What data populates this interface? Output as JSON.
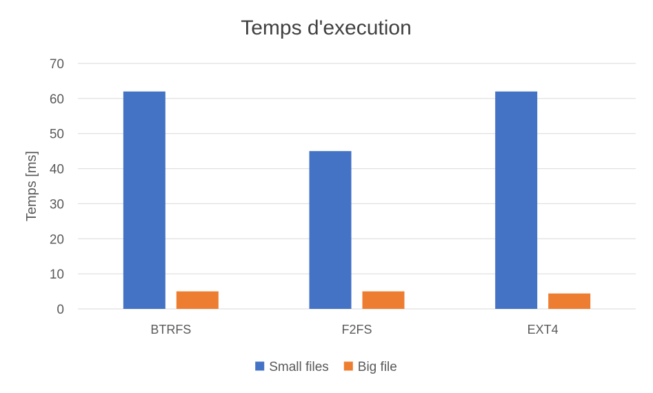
{
  "chart_data": {
    "type": "bar",
    "title": "Temps d'execution",
    "xlabel": "",
    "ylabel": "Temps [ms]",
    "categories": [
      "BTRFS",
      "F2FS",
      "EXT4"
    ],
    "series": [
      {
        "name": "Small files",
        "values": [
          62,
          45,
          62
        ],
        "color": "#4472C4"
      },
      {
        "name": "Big file",
        "values": [
          5,
          5,
          4.4
        ],
        "color": "#ED7D31"
      }
    ],
    "ylim": [
      0,
      70
    ],
    "yticks": [
      0,
      10,
      20,
      30,
      40,
      50,
      60,
      70
    ],
    "grid": true,
    "legend_position": "bottom"
  },
  "colors": {
    "gridline": "#D9D9D9",
    "axis_text": "#595959",
    "title_text": "#404040"
  }
}
